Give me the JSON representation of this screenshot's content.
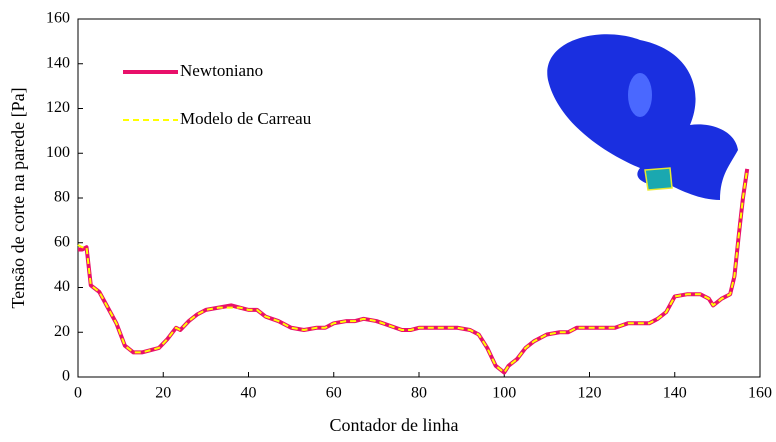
{
  "chart_data": {
    "type": "line",
    "x_label": "Contador de linha",
    "y_label": "Tensão de corte na parede [Pa]",
    "x": [
      0,
      1,
      2,
      3,
      5,
      7,
      9,
      11,
      13,
      15,
      17,
      19,
      21,
      23,
      24,
      26,
      28,
      30,
      33,
      36,
      38,
      40,
      42,
      44,
      47,
      50,
      53,
      56,
      58,
      60,
      63,
      65,
      67,
      70,
      73,
      76,
      78,
      80,
      83,
      86,
      89,
      92,
      94,
      96,
      98,
      100,
      101,
      103,
      105,
      107,
      110,
      113,
      115,
      117,
      120,
      123,
      126,
      129,
      132,
      134,
      136,
      138,
      140,
      143,
      146,
      148,
      149,
      151,
      153,
      154,
      155,
      156,
      157
    ],
    "series": [
      {
        "name": "Newtoniano",
        "color": "#e8106a",
        "style": "solid",
        "values": [
          57,
          57,
          58,
          41,
          38,
          31,
          24,
          14,
          11,
          11,
          12,
          13,
          17,
          22,
          21,
          25,
          28,
          30,
          31,
          32,
          31,
          30,
          30,
          27,
          25,
          22,
          21,
          22,
          22,
          24,
          25,
          25,
          26,
          25,
          23,
          21,
          21,
          22,
          22,
          22,
          22,
          21,
          19,
          13,
          5,
          2,
          5,
          8,
          13,
          16,
          19,
          20,
          20,
          22,
          22,
          22,
          22,
          24,
          24,
          24,
          26,
          29,
          36,
          37,
          37,
          35,
          32,
          35,
          37,
          45,
          63,
          80,
          93
        ]
      },
      {
        "name": "Modelo de Carreau",
        "color": "#ffff00",
        "style": "dashed",
        "values": [
          59,
          58,
          58,
          41,
          38,
          31,
          24,
          14,
          11,
          11,
          12,
          13,
          17,
          22,
          21,
          25,
          28,
          30,
          31,
          31,
          31,
          30,
          30,
          27,
          25,
          22,
          21,
          22,
          22,
          24,
          25,
          25,
          26,
          25,
          23,
          21,
          21,
          22,
          22,
          22,
          22,
          21,
          19,
          13,
          5,
          2,
          5,
          8,
          13,
          16,
          19,
          20,
          20,
          22,
          22,
          22,
          22,
          24,
          24,
          24,
          26,
          29,
          36,
          37,
          37,
          35,
          32,
          35,
          37,
          45,
          63,
          80,
          93
        ]
      }
    ],
    "xlim": [
      0,
      160
    ],
    "xticks": [
      0,
      20,
      40,
      60,
      80,
      100,
      120,
      140,
      160
    ],
    "ylim": [
      0,
      160
    ],
    "yticks": [
      0,
      20,
      40,
      60,
      80,
      100,
      120,
      140,
      160
    ],
    "grid": false,
    "legend": "upper left"
  }
}
